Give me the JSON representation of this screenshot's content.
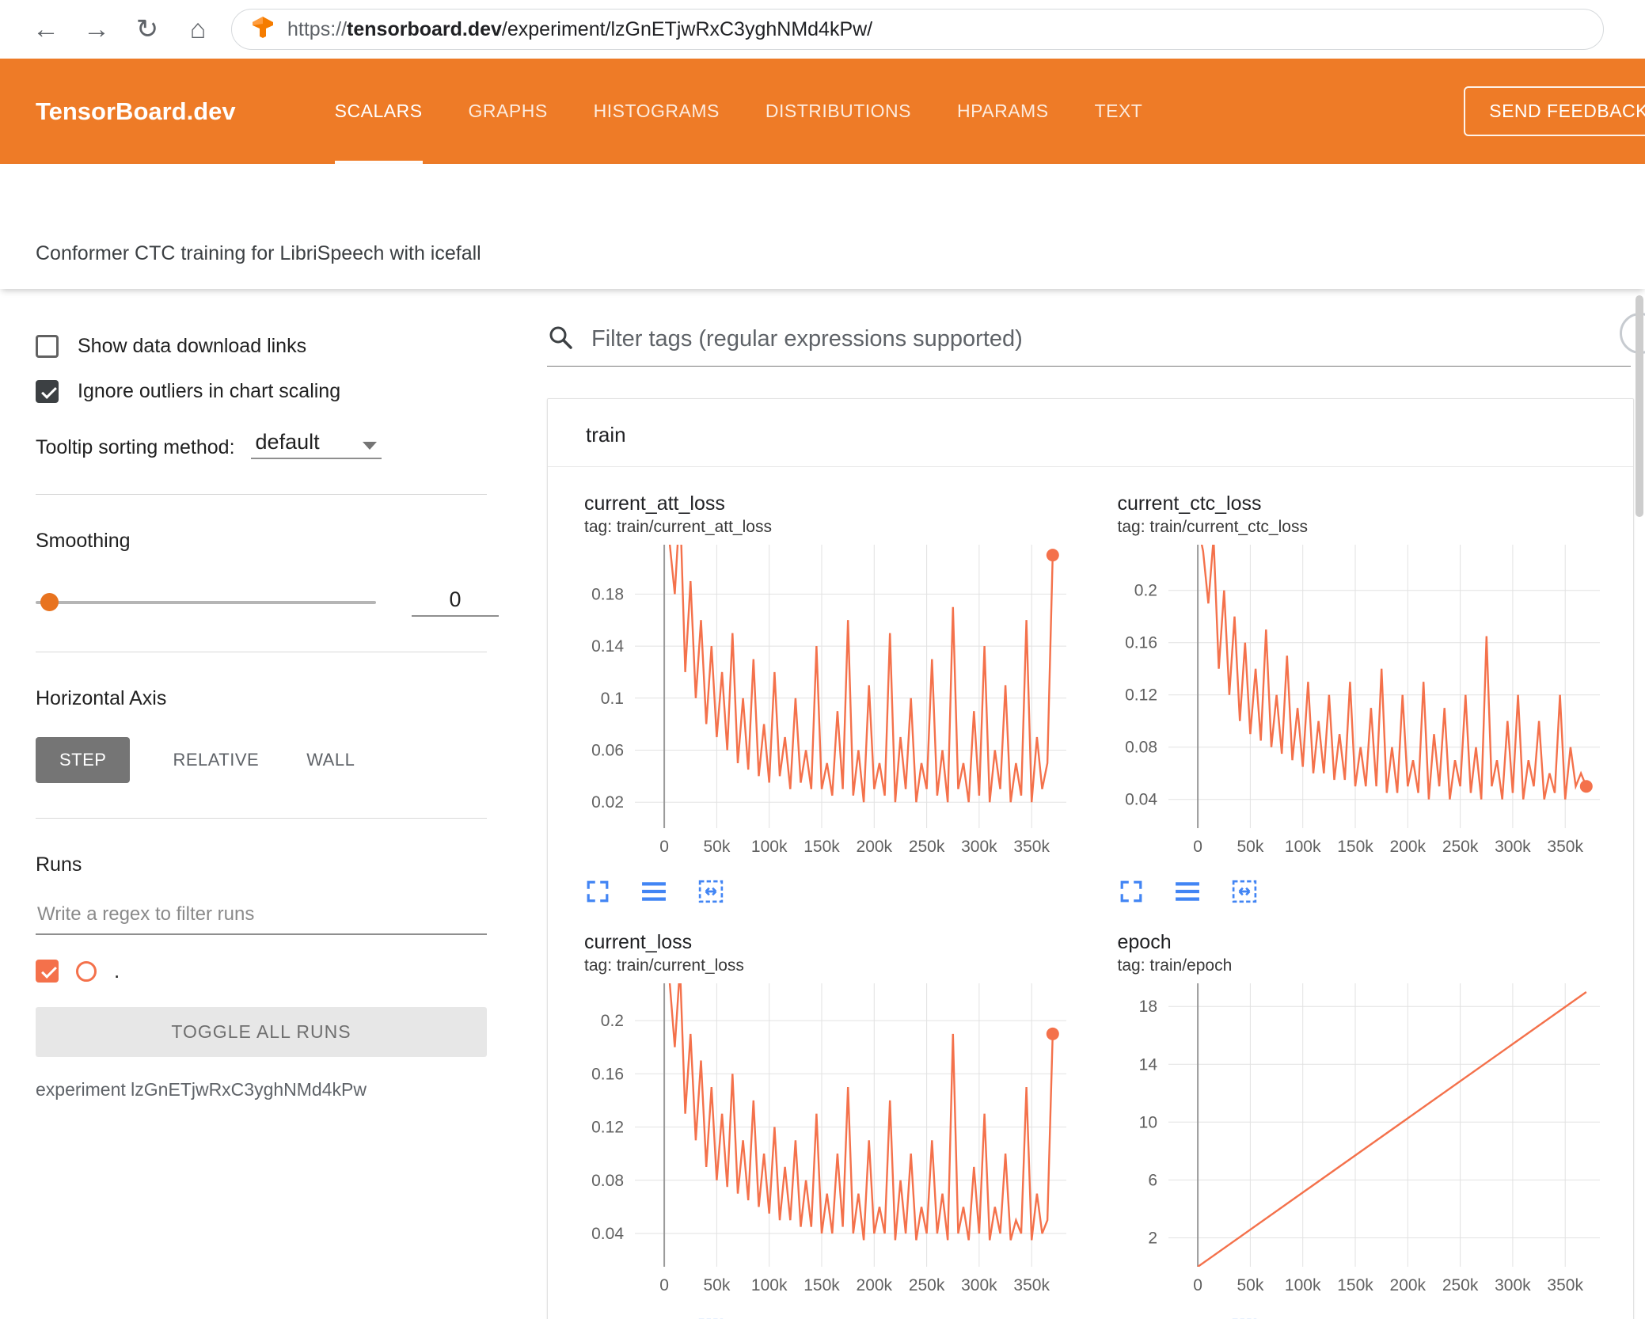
{
  "browser": {
    "url_scheme": "https://",
    "url_host": "tensorboard.dev",
    "url_path": "/experiment/lzGnETjwRxC3yghNMd4kPw/"
  },
  "icons": {
    "back": "←",
    "forward": "→",
    "reload": "↻",
    "home": "⌂"
  },
  "header": {
    "brand": "TensorBoard.dev",
    "tabs": [
      "SCALARS",
      "GRAPHS",
      "HISTOGRAMS",
      "DISTRIBUTIONS",
      "HPARAMS",
      "TEXT"
    ],
    "active_tab": "SCALARS",
    "feedback_button": "SEND FEEDBACK"
  },
  "subtitle": "Conformer CTC training for LibriSpeech with icefall",
  "sidebar": {
    "show_download_label": "Show data download links",
    "show_download_checked": false,
    "ignore_outliers_label": "Ignore outliers in chart scaling",
    "ignore_outliers_checked": true,
    "tooltip_label": "Tooltip sorting method:",
    "tooltip_value": "default",
    "smoothing_label": "Smoothing",
    "smoothing_value": "0",
    "haxis_label": "Horizontal Axis",
    "haxis_options": [
      "STEP",
      "RELATIVE",
      "WALL"
    ],
    "haxis_active": "STEP",
    "runs_label": "Runs",
    "runs_filter_placeholder": "Write a regex to filter runs",
    "run_checked": true,
    "run_item_label": ".",
    "toggle_all_label": "TOGGLE ALL RUNS",
    "experiment_label": "experiment lzGnETjwRxC3yghNMd4kPw"
  },
  "main": {
    "filter_placeholder": "Filter tags (regular expressions supported)",
    "section_title": "train"
  },
  "colors": {
    "header_orange": "#ee7b27",
    "series": "#f4714b",
    "accent_orange": "#e8731f",
    "icon_blue": "#4285f4",
    "grid": "#e2e2e2",
    "zero_line": "#9a9a9a"
  },
  "chart_data": [
    {
      "type": "line",
      "title": "current_att_loss",
      "tag": "tag: train/current_att_loss",
      "x_unit": 1000,
      "xlim": [
        -28,
        383
      ],
      "ylim": [
        0.0,
        0.218
      ],
      "x_ticks": [
        {
          "v": 0,
          "l": "0"
        },
        {
          "v": 50,
          "l": "50k"
        },
        {
          "v": 100,
          "l": "100k"
        },
        {
          "v": 150,
          "l": "150k"
        },
        {
          "v": 200,
          "l": "200k"
        },
        {
          "v": 250,
          "l": "250k"
        },
        {
          "v": 300,
          "l": "300k"
        },
        {
          "v": 350,
          "l": "350k"
        }
      ],
      "y_ticks": [
        {
          "v": 0.02,
          "l": "0.02"
        },
        {
          "v": 0.06,
          "l": "0.06"
        },
        {
          "v": 0.1,
          "l": "0.1"
        },
        {
          "v": 0.14,
          "l": "0.14"
        },
        {
          "v": 0.18,
          "l": "0.18"
        }
      ],
      "end_dot": true,
      "points": [
        [
          0,
          0.24
        ],
        [
          5,
          0.22
        ],
        [
          10,
          0.18
        ],
        [
          15,
          0.25
        ],
        [
          20,
          0.12
        ],
        [
          25,
          0.19
        ],
        [
          30,
          0.1
        ],
        [
          35,
          0.16
        ],
        [
          40,
          0.08
        ],
        [
          45,
          0.14
        ],
        [
          50,
          0.07
        ],
        [
          55,
          0.12
        ],
        [
          60,
          0.06
        ],
        [
          65,
          0.15
        ],
        [
          70,
          0.05
        ],
        [
          75,
          0.1
        ],
        [
          80,
          0.045
        ],
        [
          85,
          0.13
        ],
        [
          90,
          0.04
        ],
        [
          95,
          0.08
        ],
        [
          100,
          0.035
        ],
        [
          105,
          0.12
        ],
        [
          110,
          0.04
        ],
        [
          115,
          0.07
        ],
        [
          120,
          0.03
        ],
        [
          125,
          0.1
        ],
        [
          130,
          0.035
        ],
        [
          135,
          0.06
        ],
        [
          140,
          0.03
        ],
        [
          145,
          0.14
        ],
        [
          150,
          0.03
        ],
        [
          155,
          0.05
        ],
        [
          160,
          0.025
        ],
        [
          165,
          0.09
        ],
        [
          170,
          0.03
        ],
        [
          175,
          0.16
        ],
        [
          180,
          0.025
        ],
        [
          185,
          0.06
        ],
        [
          190,
          0.02
        ],
        [
          195,
          0.11
        ],
        [
          200,
          0.03
        ],
        [
          205,
          0.05
        ],
        [
          210,
          0.025
        ],
        [
          215,
          0.15
        ],
        [
          220,
          0.02
        ],
        [
          225,
          0.07
        ],
        [
          230,
          0.03
        ],
        [
          235,
          0.1
        ],
        [
          240,
          0.02
        ],
        [
          245,
          0.05
        ],
        [
          250,
          0.03
        ],
        [
          255,
          0.13
        ],
        [
          260,
          0.025
        ],
        [
          265,
          0.06
        ],
        [
          270,
          0.02
        ],
        [
          275,
          0.17
        ],
        [
          280,
          0.03
        ],
        [
          285,
          0.05
        ],
        [
          290,
          0.02
        ],
        [
          295,
          0.09
        ],
        [
          300,
          0.025
        ],
        [
          305,
          0.14
        ],
        [
          310,
          0.02
        ],
        [
          315,
          0.06
        ],
        [
          320,
          0.03
        ],
        [
          325,
          0.11
        ],
        [
          330,
          0.02
        ],
        [
          335,
          0.05
        ],
        [
          340,
          0.025
        ],
        [
          345,
          0.16
        ],
        [
          350,
          0.02
        ],
        [
          355,
          0.07
        ],
        [
          360,
          0.03
        ],
        [
          365,
          0.05
        ],
        [
          370,
          0.21
        ]
      ]
    },
    {
      "type": "line",
      "title": "current_ctc_loss",
      "tag": "tag: train/current_ctc_loss",
      "x_unit": 1000,
      "xlim": [
        -28,
        383
      ],
      "ylim": [
        0.018,
        0.235
      ],
      "x_ticks": [
        {
          "v": 0,
          "l": "0"
        },
        {
          "v": 50,
          "l": "50k"
        },
        {
          "v": 100,
          "l": "100k"
        },
        {
          "v": 150,
          "l": "150k"
        },
        {
          "v": 200,
          "l": "200k"
        },
        {
          "v": 250,
          "l": "250k"
        },
        {
          "v": 300,
          "l": "300k"
        },
        {
          "v": 350,
          "l": "350k"
        }
      ],
      "y_ticks": [
        {
          "v": 0.04,
          "l": "0.04"
        },
        {
          "v": 0.08,
          "l": "0.08"
        },
        {
          "v": 0.12,
          "l": "0.12"
        },
        {
          "v": 0.16,
          "l": "0.16"
        },
        {
          "v": 0.2,
          "l": "0.2"
        }
      ],
      "end_dot": true,
      "points": [
        [
          0,
          0.25
        ],
        [
          5,
          0.23
        ],
        [
          10,
          0.19
        ],
        [
          15,
          0.24
        ],
        [
          20,
          0.14
        ],
        [
          25,
          0.2
        ],
        [
          30,
          0.12
        ],
        [
          35,
          0.18
        ],
        [
          40,
          0.1
        ],
        [
          45,
          0.16
        ],
        [
          50,
          0.09
        ],
        [
          55,
          0.14
        ],
        [
          60,
          0.085
        ],
        [
          65,
          0.17
        ],
        [
          70,
          0.08
        ],
        [
          75,
          0.12
        ],
        [
          80,
          0.075
        ],
        [
          85,
          0.15
        ],
        [
          90,
          0.07
        ],
        [
          95,
          0.11
        ],
        [
          100,
          0.065
        ],
        [
          105,
          0.13
        ],
        [
          110,
          0.06
        ],
        [
          115,
          0.1
        ],
        [
          120,
          0.06
        ],
        [
          125,
          0.12
        ],
        [
          130,
          0.055
        ],
        [
          135,
          0.09
        ],
        [
          140,
          0.055
        ],
        [
          145,
          0.13
        ],
        [
          150,
          0.05
        ],
        [
          155,
          0.08
        ],
        [
          160,
          0.05
        ],
        [
          165,
          0.11
        ],
        [
          170,
          0.05
        ],
        [
          175,
          0.14
        ],
        [
          180,
          0.045
        ],
        [
          185,
          0.08
        ],
        [
          190,
          0.045
        ],
        [
          195,
          0.12
        ],
        [
          200,
          0.05
        ],
        [
          205,
          0.07
        ],
        [
          210,
          0.045
        ],
        [
          215,
          0.13
        ],
        [
          220,
          0.04
        ],
        [
          225,
          0.09
        ],
        [
          230,
          0.05
        ],
        [
          235,
          0.11
        ],
        [
          240,
          0.04
        ],
        [
          245,
          0.07
        ],
        [
          250,
          0.05
        ],
        [
          255,
          0.12
        ],
        [
          260,
          0.045
        ],
        [
          265,
          0.08
        ],
        [
          270,
          0.04
        ],
        [
          275,
          0.165
        ],
        [
          280,
          0.05
        ],
        [
          285,
          0.07
        ],
        [
          290,
          0.04
        ],
        [
          295,
          0.1
        ],
        [
          300,
          0.045
        ],
        [
          305,
          0.12
        ],
        [
          310,
          0.04
        ],
        [
          315,
          0.07
        ],
        [
          320,
          0.05
        ],
        [
          325,
          0.1
        ],
        [
          330,
          0.04
        ],
        [
          335,
          0.06
        ],
        [
          340,
          0.045
        ],
        [
          345,
          0.12
        ],
        [
          350,
          0.04
        ],
        [
          355,
          0.08
        ],
        [
          360,
          0.05
        ],
        [
          365,
          0.06
        ],
        [
          370,
          0.05
        ]
      ]
    },
    {
      "type": "line",
      "title": "current_loss",
      "tag": "tag: train/current_loss",
      "x_unit": 1000,
      "xlim": [
        -28,
        383
      ],
      "ylim": [
        0.015,
        0.228
      ],
      "x_ticks": [
        {
          "v": 0,
          "l": "0"
        },
        {
          "v": 50,
          "l": "50k"
        },
        {
          "v": 100,
          "l": "100k"
        },
        {
          "v": 150,
          "l": "150k"
        },
        {
          "v": 200,
          "l": "200k"
        },
        {
          "v": 250,
          "l": "250k"
        },
        {
          "v": 300,
          "l": "300k"
        },
        {
          "v": 350,
          "l": "350k"
        }
      ],
      "y_ticks": [
        {
          "v": 0.04,
          "l": "0.04"
        },
        {
          "v": 0.08,
          "l": "0.08"
        },
        {
          "v": 0.12,
          "l": "0.12"
        },
        {
          "v": 0.16,
          "l": "0.16"
        },
        {
          "v": 0.2,
          "l": "0.2"
        }
      ],
      "end_dot": true,
      "points": [
        [
          0,
          0.24
        ],
        [
          5,
          0.23
        ],
        [
          10,
          0.18
        ],
        [
          15,
          0.24
        ],
        [
          20,
          0.13
        ],
        [
          25,
          0.19
        ],
        [
          30,
          0.11
        ],
        [
          35,
          0.17
        ],
        [
          40,
          0.09
        ],
        [
          45,
          0.15
        ],
        [
          50,
          0.08
        ],
        [
          55,
          0.13
        ],
        [
          60,
          0.075
        ],
        [
          65,
          0.16
        ],
        [
          70,
          0.07
        ],
        [
          75,
          0.11
        ],
        [
          80,
          0.065
        ],
        [
          85,
          0.14
        ],
        [
          90,
          0.06
        ],
        [
          95,
          0.1
        ],
        [
          100,
          0.055
        ],
        [
          105,
          0.12
        ],
        [
          110,
          0.05
        ],
        [
          115,
          0.09
        ],
        [
          120,
          0.05
        ],
        [
          125,
          0.11
        ],
        [
          130,
          0.045
        ],
        [
          135,
          0.08
        ],
        [
          140,
          0.045
        ],
        [
          145,
          0.13
        ],
        [
          150,
          0.04
        ],
        [
          155,
          0.07
        ],
        [
          160,
          0.04
        ],
        [
          165,
          0.1
        ],
        [
          170,
          0.045
        ],
        [
          175,
          0.15
        ],
        [
          180,
          0.04
        ],
        [
          185,
          0.07
        ],
        [
          190,
          0.035
        ],
        [
          195,
          0.11
        ],
        [
          200,
          0.04
        ],
        [
          205,
          0.06
        ],
        [
          210,
          0.04
        ],
        [
          215,
          0.14
        ],
        [
          220,
          0.035
        ],
        [
          225,
          0.08
        ],
        [
          230,
          0.04
        ],
        [
          235,
          0.1
        ],
        [
          240,
          0.035
        ],
        [
          245,
          0.06
        ],
        [
          250,
          0.04
        ],
        [
          255,
          0.11
        ],
        [
          260,
          0.04
        ],
        [
          265,
          0.07
        ],
        [
          270,
          0.035
        ],
        [
          275,
          0.19
        ],
        [
          280,
          0.04
        ],
        [
          285,
          0.06
        ],
        [
          290,
          0.035
        ],
        [
          295,
          0.09
        ],
        [
          300,
          0.04
        ],
        [
          305,
          0.13
        ],
        [
          310,
          0.035
        ],
        [
          315,
          0.06
        ],
        [
          320,
          0.04
        ],
        [
          325,
          0.1
        ],
        [
          330,
          0.035
        ],
        [
          335,
          0.05
        ],
        [
          340,
          0.04
        ],
        [
          345,
          0.15
        ],
        [
          350,
          0.035
        ],
        [
          355,
          0.07
        ],
        [
          360,
          0.04
        ],
        [
          365,
          0.05
        ],
        [
          370,
          0.19
        ]
      ]
    },
    {
      "type": "line",
      "title": "epoch",
      "tag": "tag: train/epoch",
      "x_unit": 1000,
      "xlim": [
        -28,
        383
      ],
      "ylim": [
        0,
        19.6
      ],
      "x_ticks": [
        {
          "v": 0,
          "l": "0"
        },
        {
          "v": 50,
          "l": "50k"
        },
        {
          "v": 100,
          "l": "100k"
        },
        {
          "v": 150,
          "l": "150k"
        },
        {
          "v": 200,
          "l": "200k"
        },
        {
          "v": 250,
          "l": "250k"
        },
        {
          "v": 300,
          "l": "300k"
        },
        {
          "v": 350,
          "l": "350k"
        }
      ],
      "y_ticks": [
        {
          "v": 2,
          "l": "2"
        },
        {
          "v": 6,
          "l": "6"
        },
        {
          "v": 10,
          "l": "10"
        },
        {
          "v": 14,
          "l": "14"
        },
        {
          "v": 18,
          "l": "18"
        }
      ],
      "end_dot": false,
      "points": [
        [
          0,
          0
        ],
        [
          370,
          19
        ]
      ]
    }
  ]
}
